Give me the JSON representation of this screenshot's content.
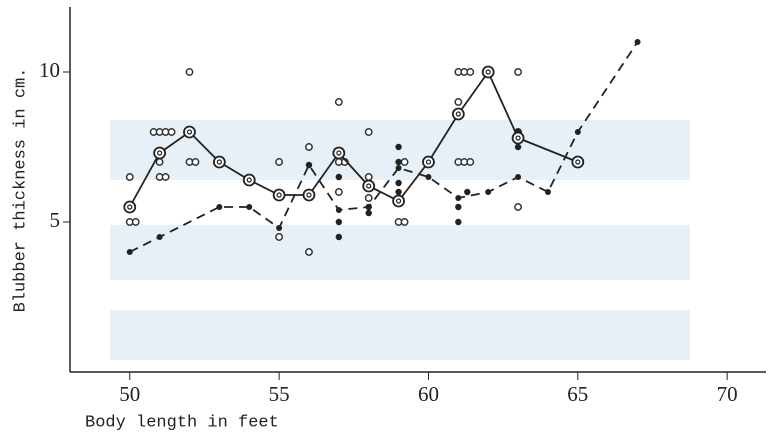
{
  "chart_data": {
    "type": "scatter",
    "x_label": "Body length in feet",
    "y_label": "Blubber thickness in cm.",
    "xlim": [
      48,
      71.3
    ],
    "ylim": [
      0,
      12
    ],
    "xticks": [
      50,
      55,
      60,
      65,
      70
    ],
    "yticks": [
      5,
      10
    ],
    "series": [
      {
        "mode": "markers",
        "marker": "open",
        "color": "#333",
        "x": [
          50,
          50,
          50.2,
          50.8,
          51,
          51.2,
          51.4,
          51,
          51.2,
          51,
          52,
          52,
          52.2,
          55,
          55,
          56,
          56,
          57,
          57,
          57.2,
          57,
          58,
          58,
          58,
          59,
          59.2,
          59.2,
          61,
          61.2,
          61.4,
          61,
          61,
          61.2,
          61.4,
          63,
          63,
          63,
          65
        ],
        "values": [
          6.5,
          5,
          5,
          8,
          8,
          8,
          8,
          6.5,
          6.5,
          7,
          10,
          7,
          7,
          7,
          4.5,
          7.5,
          4,
          9,
          7,
          7,
          6,
          8,
          6.5,
          5.8,
          5,
          5,
          7,
          10,
          10,
          10,
          9,
          7,
          7,
          7,
          10,
          5.5,
          8,
          7
        ]
      },
      {
        "mode": "markers",
        "marker": "filled",
        "color": "#222",
        "x": [
          56,
          57,
          57,
          57,
          58,
          58,
          59,
          59,
          59,
          59,
          61,
          61,
          61.3,
          63,
          63
        ],
        "values": [
          6.9,
          4.5,
          5,
          6.5,
          5.5,
          5.3,
          7.5,
          7,
          6.3,
          6,
          5,
          5.5,
          6,
          8,
          7.5
        ]
      },
      {
        "mode": "line",
        "dash": false,
        "marker": "ring",
        "color": "#222",
        "x": [
          50,
          51,
          52,
          53,
          54,
          55,
          56,
          57,
          58,
          59,
          60,
          61,
          62,
          63,
          65
        ],
        "values": [
          5.5,
          7.3,
          8,
          7,
          6.4,
          5.9,
          5.9,
          7.3,
          6.2,
          5.7,
          7,
          8.6,
          10,
          7.8,
          7
        ]
      },
      {
        "mode": "line",
        "dash": true,
        "marker": "dot",
        "color": "#222",
        "x": [
          50,
          51,
          53,
          54,
          55,
          56,
          57,
          58,
          59,
          60,
          61,
          62,
          63,
          64,
          65,
          67
        ],
        "values": [
          4,
          4.5,
          5.5,
          5.5,
          4.8,
          6.9,
          5.4,
          5.5,
          6.8,
          6.5,
          5.8,
          6,
          6.5,
          6,
          8,
          11
        ]
      }
    ]
  }
}
